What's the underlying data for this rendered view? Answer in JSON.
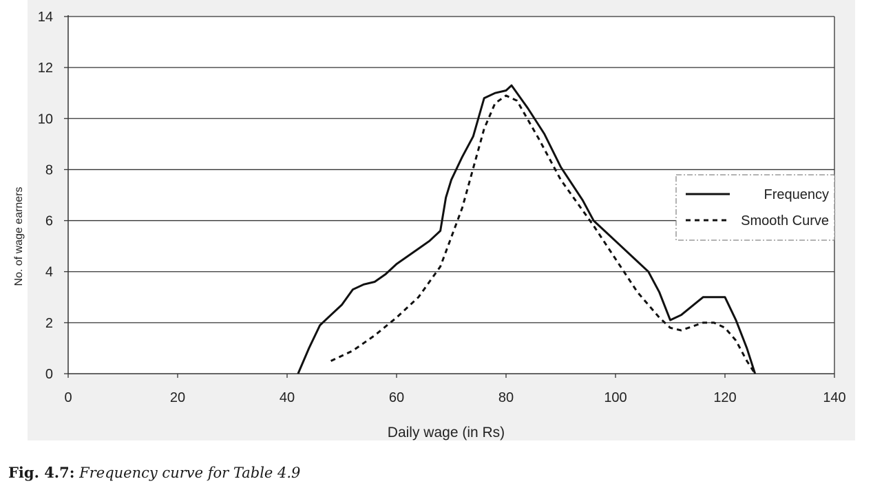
{
  "chart_data": {
    "type": "line",
    "xlabel": "Daily wage  (in Rs)",
    "ylabel": "No. of wage earners",
    "xlim": [
      0,
      140
    ],
    "ylim": [
      0,
      14
    ],
    "xticks": [
      0,
      20,
      40,
      60,
      80,
      100,
      120,
      140
    ],
    "yticks": [
      0,
      2,
      4,
      6,
      8,
      10,
      12,
      14
    ],
    "grid": "horizontal",
    "legend": {
      "position": "right",
      "entries": [
        "Frequency",
        "Smooth Curve"
      ]
    },
    "series": [
      {
        "name": "Frequency",
        "style": "solid",
        "points": [
          [
            42,
            0
          ],
          [
            44,
            1
          ],
          [
            46,
            1.9
          ],
          [
            48,
            2.3
          ],
          [
            50,
            2.7
          ],
          [
            52,
            3.3
          ],
          [
            54,
            3.5
          ],
          [
            56,
            3.6
          ],
          [
            58,
            3.9
          ],
          [
            60,
            4.3
          ],
          [
            62,
            4.6
          ],
          [
            64,
            4.9
          ],
          [
            66,
            5.2
          ],
          [
            68,
            5.6
          ],
          [
            69,
            6.9
          ],
          [
            70,
            7.6
          ],
          [
            72,
            8.5
          ],
          [
            74,
            9.3
          ],
          [
            76,
            10.8
          ],
          [
            78,
            11
          ],
          [
            80,
            11.1
          ],
          [
            81,
            11.3
          ],
          [
            84,
            10.4
          ],
          [
            87,
            9.4
          ],
          [
            90,
            8.1
          ],
          [
            94,
            6.8
          ],
          [
            96,
            6
          ],
          [
            100,
            5.2
          ],
          [
            104,
            4.4
          ],
          [
            106,
            4
          ],
          [
            108,
            3.2
          ],
          [
            110,
            2.1
          ],
          [
            112,
            2.3
          ],
          [
            116,
            3
          ],
          [
            120,
            3
          ],
          [
            122,
            2.1
          ],
          [
            124,
            1
          ],
          [
            125.5,
            0
          ]
        ]
      },
      {
        "name": "Smooth Curve",
        "style": "dashed",
        "points": [
          [
            48,
            0.5
          ],
          [
            52,
            0.9
          ],
          [
            56,
            1.5
          ],
          [
            60,
            2.2
          ],
          [
            64,
            3
          ],
          [
            68,
            4.2
          ],
          [
            72,
            6.5
          ],
          [
            76,
            9.6
          ],
          [
            78,
            10.6
          ],
          [
            80,
            10.9
          ],
          [
            82,
            10.7
          ],
          [
            86,
            9.2
          ],
          [
            90,
            7.6
          ],
          [
            96,
            5.8
          ],
          [
            100,
            4.5
          ],
          [
            104,
            3.2
          ],
          [
            108,
            2.2
          ],
          [
            110,
            1.8
          ],
          [
            112,
            1.7
          ],
          [
            116,
            2
          ],
          [
            118,
            2
          ],
          [
            120,
            1.8
          ],
          [
            122,
            1.3
          ],
          [
            124,
            0.5
          ],
          [
            125.5,
            0
          ]
        ]
      }
    ]
  },
  "caption": {
    "label": "Fig. 4.7:",
    "text": "Frequency curve for Table 4.9"
  }
}
